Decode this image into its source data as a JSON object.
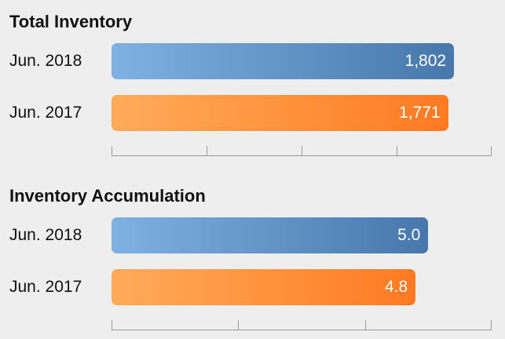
{
  "colors": {
    "jun_2018_bar": "#4f85bc",
    "jun_2017_bar": "#ff8a33",
    "background": "#eeeeee"
  },
  "chart_data": [
    {
      "type": "bar",
      "orientation": "horizontal",
      "title": "Total Inventory",
      "categories": [
        "Jun. 2018",
        "Jun. 2017"
      ],
      "values": [
        1802,
        1771
      ],
      "value_labels": [
        "1,802",
        "1,771"
      ],
      "xlim": [
        0,
        2000
      ],
      "tick_count": 5,
      "grid": false
    },
    {
      "type": "bar",
      "orientation": "horizontal",
      "title": "Inventory Accumulation",
      "categories": [
        "Jun. 2018",
        "Jun. 2017"
      ],
      "values": [
        5.0,
        4.8
      ],
      "value_labels": [
        "5.0",
        "4.8"
      ],
      "xlim": [
        0,
        6
      ],
      "tick_count": 4,
      "grid": false
    }
  ]
}
